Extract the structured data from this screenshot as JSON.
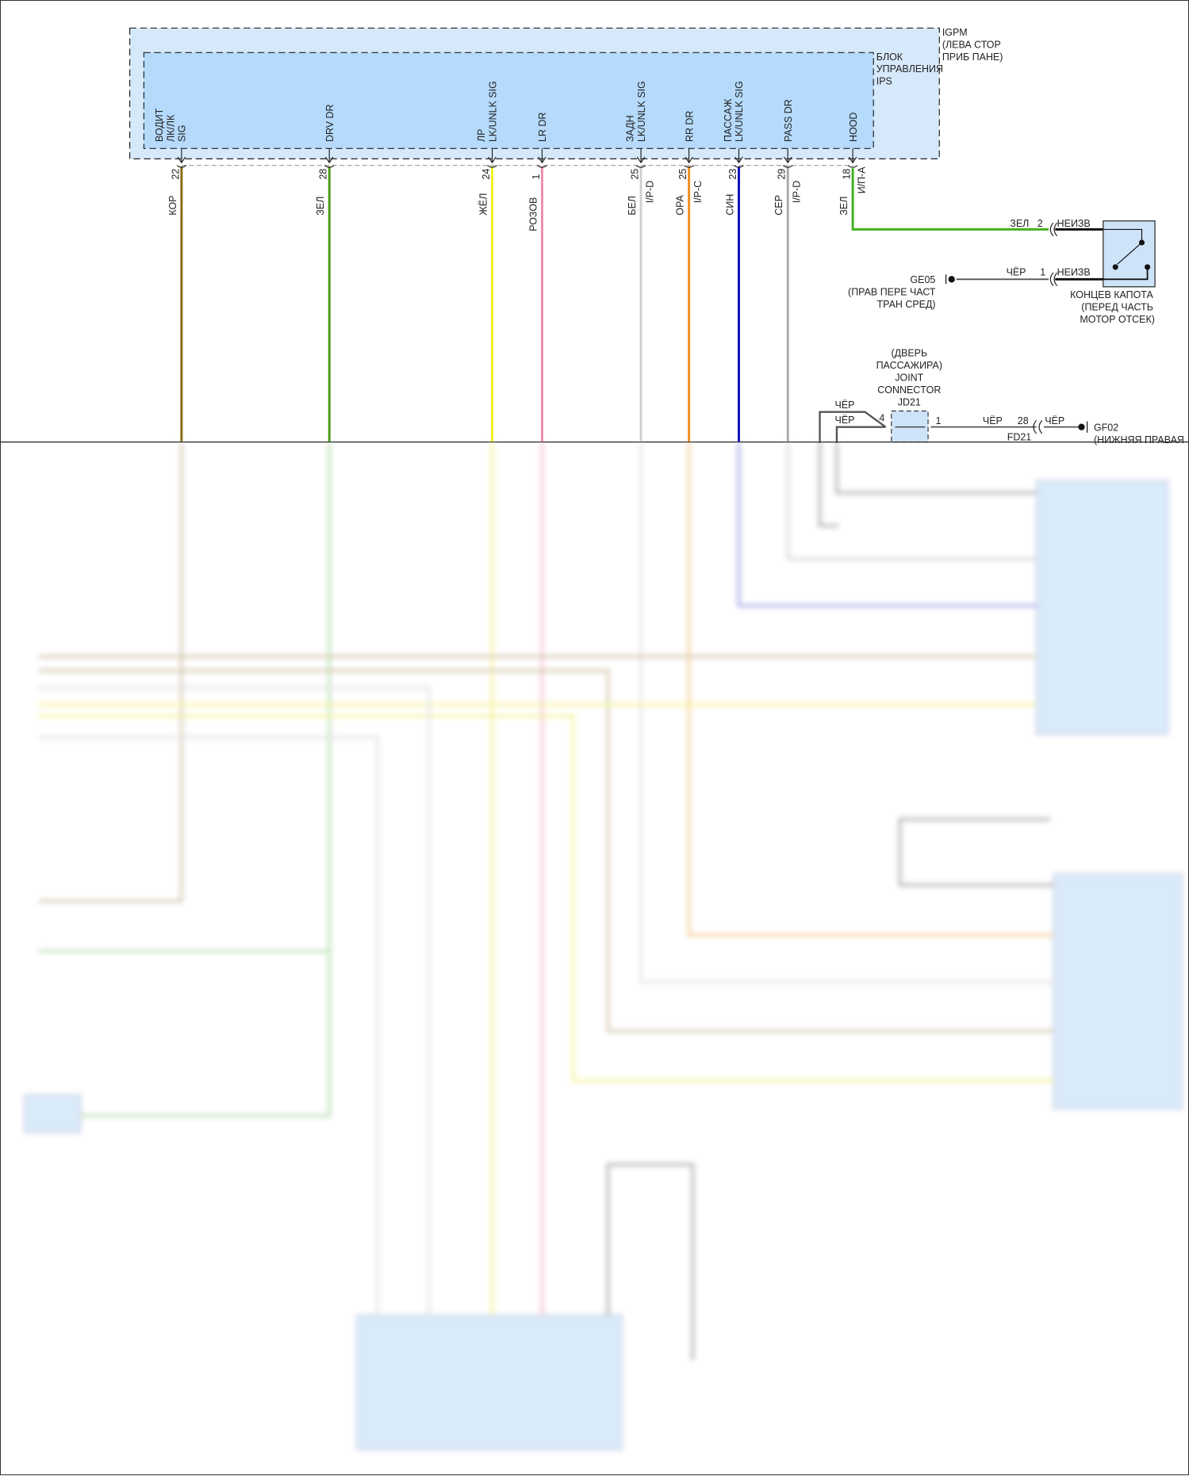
{
  "module": {
    "outer_label": [
      "IGPM",
      "(ЛЕВА СТОР",
      "ПРИБ ПАНЕ)"
    ],
    "inner_label": [
      "БЛОК",
      "УПРАВЛЕНИЯ",
      "IPS"
    ]
  },
  "pins": [
    {
      "name": [
        "ВОДИТ",
        "ЛК/ЛК",
        "SIG"
      ],
      "pin": "22",
      "conn": "",
      "wire": "КОР",
      "color": "#8b6914"
    },
    {
      "name": [
        "DRV DR"
      ],
      "pin": "28",
      "conn": "",
      "wire": "ЗЕЛ",
      "color": "#4a9a1a"
    },
    {
      "name": [
        "ЛР",
        "LK/UNLK SIG"
      ],
      "pin": "24",
      "conn": "",
      "wire": "ЖЁЛ",
      "color": "#f2f020"
    },
    {
      "name": [
        "LR DR"
      ],
      "pin": "1",
      "conn": "",
      "wire": "РОЗОВ",
      "color": "#e890a8"
    },
    {
      "name": [
        "ЗАДН",
        "LK/UNLK SIG"
      ],
      "pin": "25",
      "conn": "I/P-D",
      "wire": "БЕЛ",
      "color": "#d0d0d0"
    },
    {
      "name": [
        "RR DR"
      ],
      "pin": "25",
      "conn": "I/P-C",
      "wire": "ОРА",
      "color": "#f09020"
    },
    {
      "name": [
        "ПАССАЖ",
        "LK/UNLK SIG"
      ],
      "pin": "23",
      "conn": "",
      "wire": "СИН",
      "color": "#1010c0"
    },
    {
      "name": [
        "PASS DR"
      ],
      "pin": "29",
      "conn": "I/P-D",
      "wire": "СЕР",
      "color": "#aaaaaa"
    },
    {
      "name": [
        "HOOD"
      ],
      "pin": "18",
      "conn": "И/П-А",
      "wire": "ЗЕЛ",
      "color": "#40b020"
    }
  ],
  "hood_switch": {
    "wire1": "ЗЕЛ",
    "pin1": "2",
    "conn1": "НЕИЗВ",
    "wire2": "ЧЁР",
    "pin2": "1",
    "conn2": "НЕИЗВ",
    "label": [
      "КОНЦЕВ КАПОТА",
      "(ПЕРЕД ЧАСТЬ",
      "МОТОР ОТСЕК)"
    ]
  },
  "ground_ge05": {
    "id": "GE05",
    "label": [
      "(ПРАВ ПЕРЕ ЧАСТ",
      "ТРАН СРЕД)"
    ]
  },
  "joint_connector": {
    "label": [
      "(ДВЕРЬ",
      "ПАССАЖИРА)",
      "JOINT",
      "CONNECTOR",
      "JD21"
    ],
    "wire_a": "ЧЁР",
    "wire_b": "ЧЁР",
    "pin_in": "4",
    "pin_out": "1",
    "wire_out": "ЧЁР",
    "pin_fd": "28",
    "fd_conn": "FD21",
    "wire_gnd": "ЧЁР"
  },
  "ground_gf02": {
    "id": "GF02",
    "label": "(НИЖНЯЯ ПРАВАЯ"
  },
  "colors": {
    "module_outer": "#d6e9fb",
    "module_inner": "#b5dafb",
    "hood_wire": "#40b020"
  }
}
